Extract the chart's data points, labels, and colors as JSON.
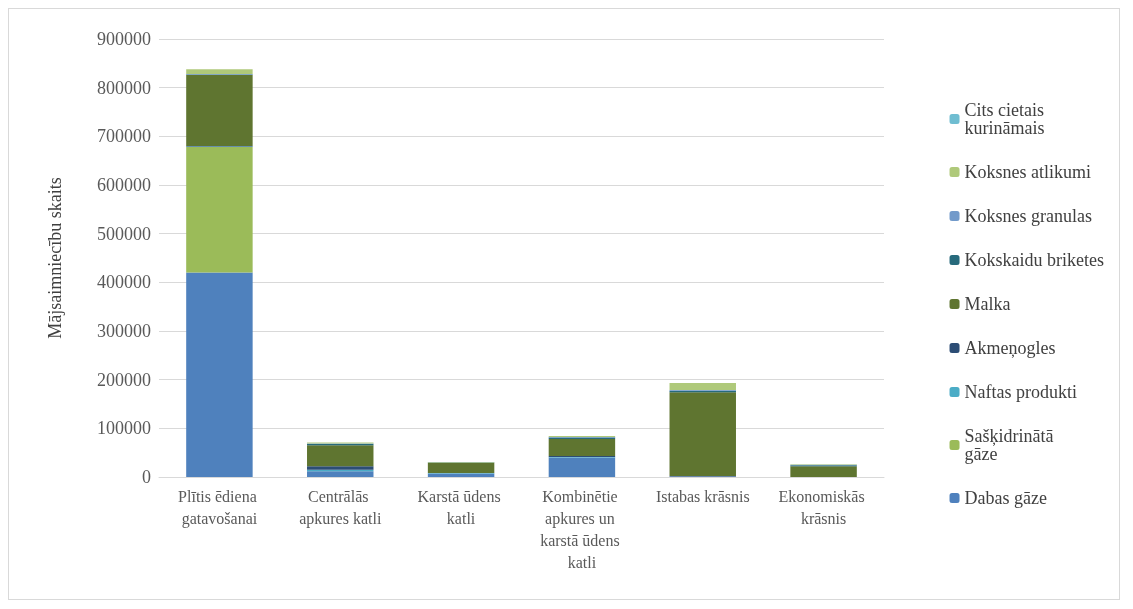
{
  "chart_data": {
    "type": "bar",
    "stacked": true,
    "ylabel": "Mājsaimniecību skaits",
    "categories": [
      "Plītis ēdiena gatavošanai",
      "Centrālās apkures katli",
      "Karstā ūdens katli",
      "Kombinētie apkures un karstā ūdens katli",
      "Istabas krāsnis",
      "Ekonomiskās krāsnis"
    ],
    "series": [
      {
        "name": "Dabas gāze",
        "color": "#4f81bd",
        "values": [
          420000,
          12000,
          7000,
          40000,
          1000,
          0
        ]
      },
      {
        "name": "Sašķidrinātā gāze",
        "color": "#9bbb59",
        "values": [
          258000,
          0,
          0,
          0,
          0,
          0
        ]
      },
      {
        "name": "Naftas produkti",
        "color": "#4bacc6",
        "values": [
          1000,
          3000,
          1000,
          1000,
          0,
          0
        ]
      },
      {
        "name": "Akmeņogles",
        "color": "#2c4d75",
        "values": [
          1000,
          7000,
          0,
          2000,
          1000,
          0
        ]
      },
      {
        "name": "Malka",
        "color": "#5f7530",
        "values": [
          146000,
          43000,
          21000,
          35000,
          172000,
          22000
        ]
      },
      {
        "name": "Kokskaidu briketes",
        "color": "#276a7c",
        "values": [
          1000,
          3000,
          1000,
          3000,
          3000,
          2000
        ]
      },
      {
        "name": "Koksnes granulas",
        "color": "#729aca",
        "values": [
          1000,
          1000,
          0,
          1000,
          2000,
          1000
        ]
      },
      {
        "name": "Koksnes atlikumi",
        "color": "#afc97a",
        "values": [
          10000,
          2000,
          1000,
          2000,
          14000,
          1000
        ]
      },
      {
        "name": "Cits cietais kurināmais",
        "color": "#6fbdd1",
        "values": [
          0,
          0,
          0,
          0,
          0,
          0
        ]
      }
    ],
    "ylim": [
      0,
      900000
    ],
    "yticks": [
      0,
      100000,
      200000,
      300000,
      400000,
      500000,
      600000,
      700000,
      800000,
      900000
    ],
    "grid": "y",
    "legend": "right"
  }
}
